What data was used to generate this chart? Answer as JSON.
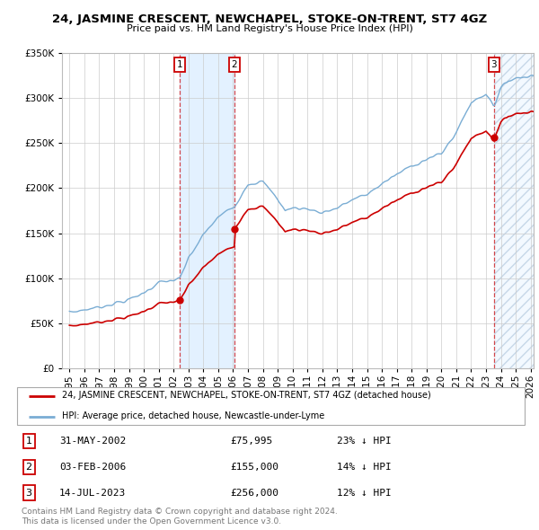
{
  "title": "24, JASMINE CRESCENT, NEWCHAPEL, STOKE-ON-TRENT, ST7 4GZ",
  "subtitle": "Price paid vs. HM Land Registry's House Price Index (HPI)",
  "legend_line1": "24, JASMINE CRESCENT, NEWCHAPEL, STOKE-ON-TRENT, ST7 4GZ (detached house)",
  "legend_line2": "HPI: Average price, detached house, Newcastle-under-Lyme",
  "sale_dates": [
    "31-MAY-2002",
    "03-FEB-2006",
    "14-JUL-2023"
  ],
  "sale_prices": [
    75995,
    155000,
    256000
  ],
  "sale_years": [
    2002.42,
    2006.09,
    2023.54
  ],
  "sale_pct": [
    "23%",
    "14%",
    "12%"
  ],
  "footer_line1": "Contains HM Land Registry data © Crown copyright and database right 2024.",
  "footer_line2": "This data is licensed under the Open Government Licence v3.0.",
  "ylim": [
    0,
    350000
  ],
  "xlim_start": 1994.5,
  "xlim_end": 2026.2,
  "red_color": "#cc0000",
  "blue_color": "#7aadd4",
  "shade_color": "#ddeeff",
  "background_color": "#ffffff",
  "grid_color": "#cccccc",
  "hpi_anchors_t": [
    1995.0,
    1996.0,
    1997.0,
    1998.0,
    1999.0,
    2000.0,
    2001.0,
    2002.42,
    2003.0,
    2004.0,
    2005.0,
    2006.09,
    2007.0,
    2008.0,
    2009.0,
    2009.5,
    2010.0,
    2011.0,
    2012.0,
    2013.0,
    2014.0,
    2015.0,
    2016.0,
    2017.0,
    2018.0,
    2019.0,
    2020.0,
    2021.0,
    2022.0,
    2023.0,
    2023.54,
    2024.0,
    2024.5,
    2025.0,
    2026.0
  ],
  "hpi_anchors_v": [
    62000,
    65000,
    68000,
    72000,
    76000,
    84000,
    95000,
    99000,
    122000,
    148000,
    168000,
    180000,
    205000,
    207000,
    188000,
    175000,
    178000,
    177000,
    173000,
    178000,
    187000,
    193000,
    205000,
    215000,
    225000,
    232000,
    238000,
    262000,
    295000,
    305000,
    292000,
    310000,
    320000,
    322000,
    325000
  ]
}
